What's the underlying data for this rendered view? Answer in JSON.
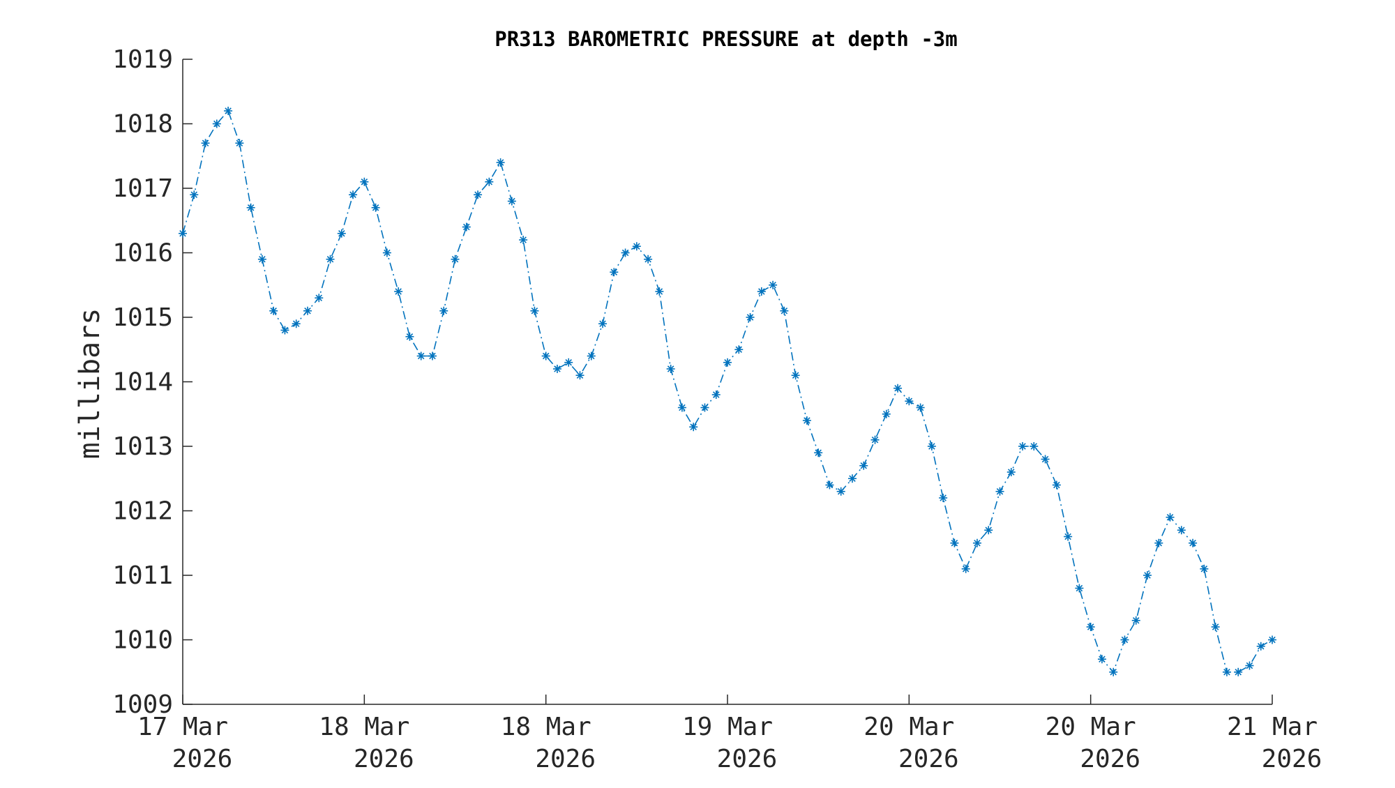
{
  "chart_data": {
    "type": "line",
    "title": "PR313 BAROMETRIC PRESSURE at depth -3m",
    "xlabel": "",
    "ylabel": "millibars",
    "ylim": [
      1009,
      1019
    ],
    "xlim": [
      0,
      96
    ],
    "x_unit": "hours since first x tick (17 Mar 2026)",
    "yticks": [
      1009,
      1010,
      1011,
      1012,
      1013,
      1014,
      1015,
      1016,
      1017,
      1018,
      1019
    ],
    "xticks": [
      {
        "x": 0,
        "line1": "17 Mar",
        "line2": "2026"
      },
      {
        "x": 16,
        "line1": "18 Mar",
        "line2": "2026"
      },
      {
        "x": 32,
        "line1": "18 Mar",
        "line2": "2026"
      },
      {
        "x": 48,
        "line1": "19 Mar",
        "line2": "2026"
      },
      {
        "x": 64,
        "line1": "20 Mar",
        "line2": "2026"
      },
      {
        "x": 80,
        "line1": "20 Mar",
        "line2": "2026"
      },
      {
        "x": 96,
        "line1": "21 Mar",
        "line2": "2026"
      }
    ],
    "grid": false,
    "series": [
      {
        "color": "#0072BD",
        "marker": "asterisk",
        "linestyle": "dash-dot",
        "x": [
          0,
          1,
          2,
          3,
          4,
          5,
          6,
          7,
          8,
          9,
          10,
          11,
          12,
          13,
          14,
          15,
          16,
          17,
          18,
          19,
          20,
          21,
          22,
          23,
          24,
          25,
          26,
          27,
          28,
          29,
          30,
          31,
          32,
          33,
          34,
          35,
          36,
          37,
          38,
          39,
          40,
          41,
          42,
          43,
          44,
          45,
          46,
          47,
          48,
          49,
          50,
          51,
          52,
          53,
          54,
          55,
          56,
          57,
          58,
          59,
          60,
          61,
          62,
          63,
          64,
          65,
          66,
          67,
          68,
          69,
          70,
          71,
          72,
          73,
          74,
          75,
          76,
          77,
          78,
          79,
          80,
          81,
          82,
          83,
          84,
          85,
          86,
          87,
          88,
          89,
          90,
          91,
          92,
          93,
          94,
          95,
          96
        ],
        "values": [
          1016.3,
          1016.9,
          1017.7,
          1018.0,
          1018.2,
          1017.7,
          1016.7,
          1015.9,
          1015.1,
          1014.8,
          1014.9,
          1015.1,
          1015.3,
          1015.9,
          1016.3,
          1016.9,
          1017.1,
          1016.7,
          1016.0,
          1015.4,
          1014.7,
          1014.4,
          1014.4,
          1015.1,
          1015.9,
          1016.4,
          1016.9,
          1017.1,
          1017.4,
          1016.8,
          1016.2,
          1015.1,
          1014.4,
          1014.2,
          1014.3,
          1014.1,
          1014.4,
          1014.9,
          1015.7,
          1016.0,
          1016.1,
          1015.9,
          1015.4,
          1014.2,
          1013.6,
          1013.3,
          1013.6,
          1013.8,
          1014.3,
          1014.5,
          1015.0,
          1015.4,
          1015.5,
          1015.1,
          1014.1,
          1013.4,
          1012.9,
          1012.4,
          1012.3,
          1012.5,
          1012.7,
          1013.1,
          1013.5,
          1013.9,
          1013.7,
          1013.6,
          1013.0,
          1012.2,
          1011.5,
          1011.1,
          1011.5,
          1011.7,
          1012.3,
          1012.6,
          1013.0,
          1013.0,
          1012.8,
          1012.4,
          1011.6,
          1010.8,
          1010.2,
          1009.7,
          1009.5,
          1010.0,
          1010.3,
          1011.0,
          1011.5,
          1011.9,
          1011.7,
          1011.5,
          1011.1,
          1010.2,
          1009.5,
          1009.5,
          1009.6,
          1009.9,
          1010.0
        ]
      }
    ]
  }
}
